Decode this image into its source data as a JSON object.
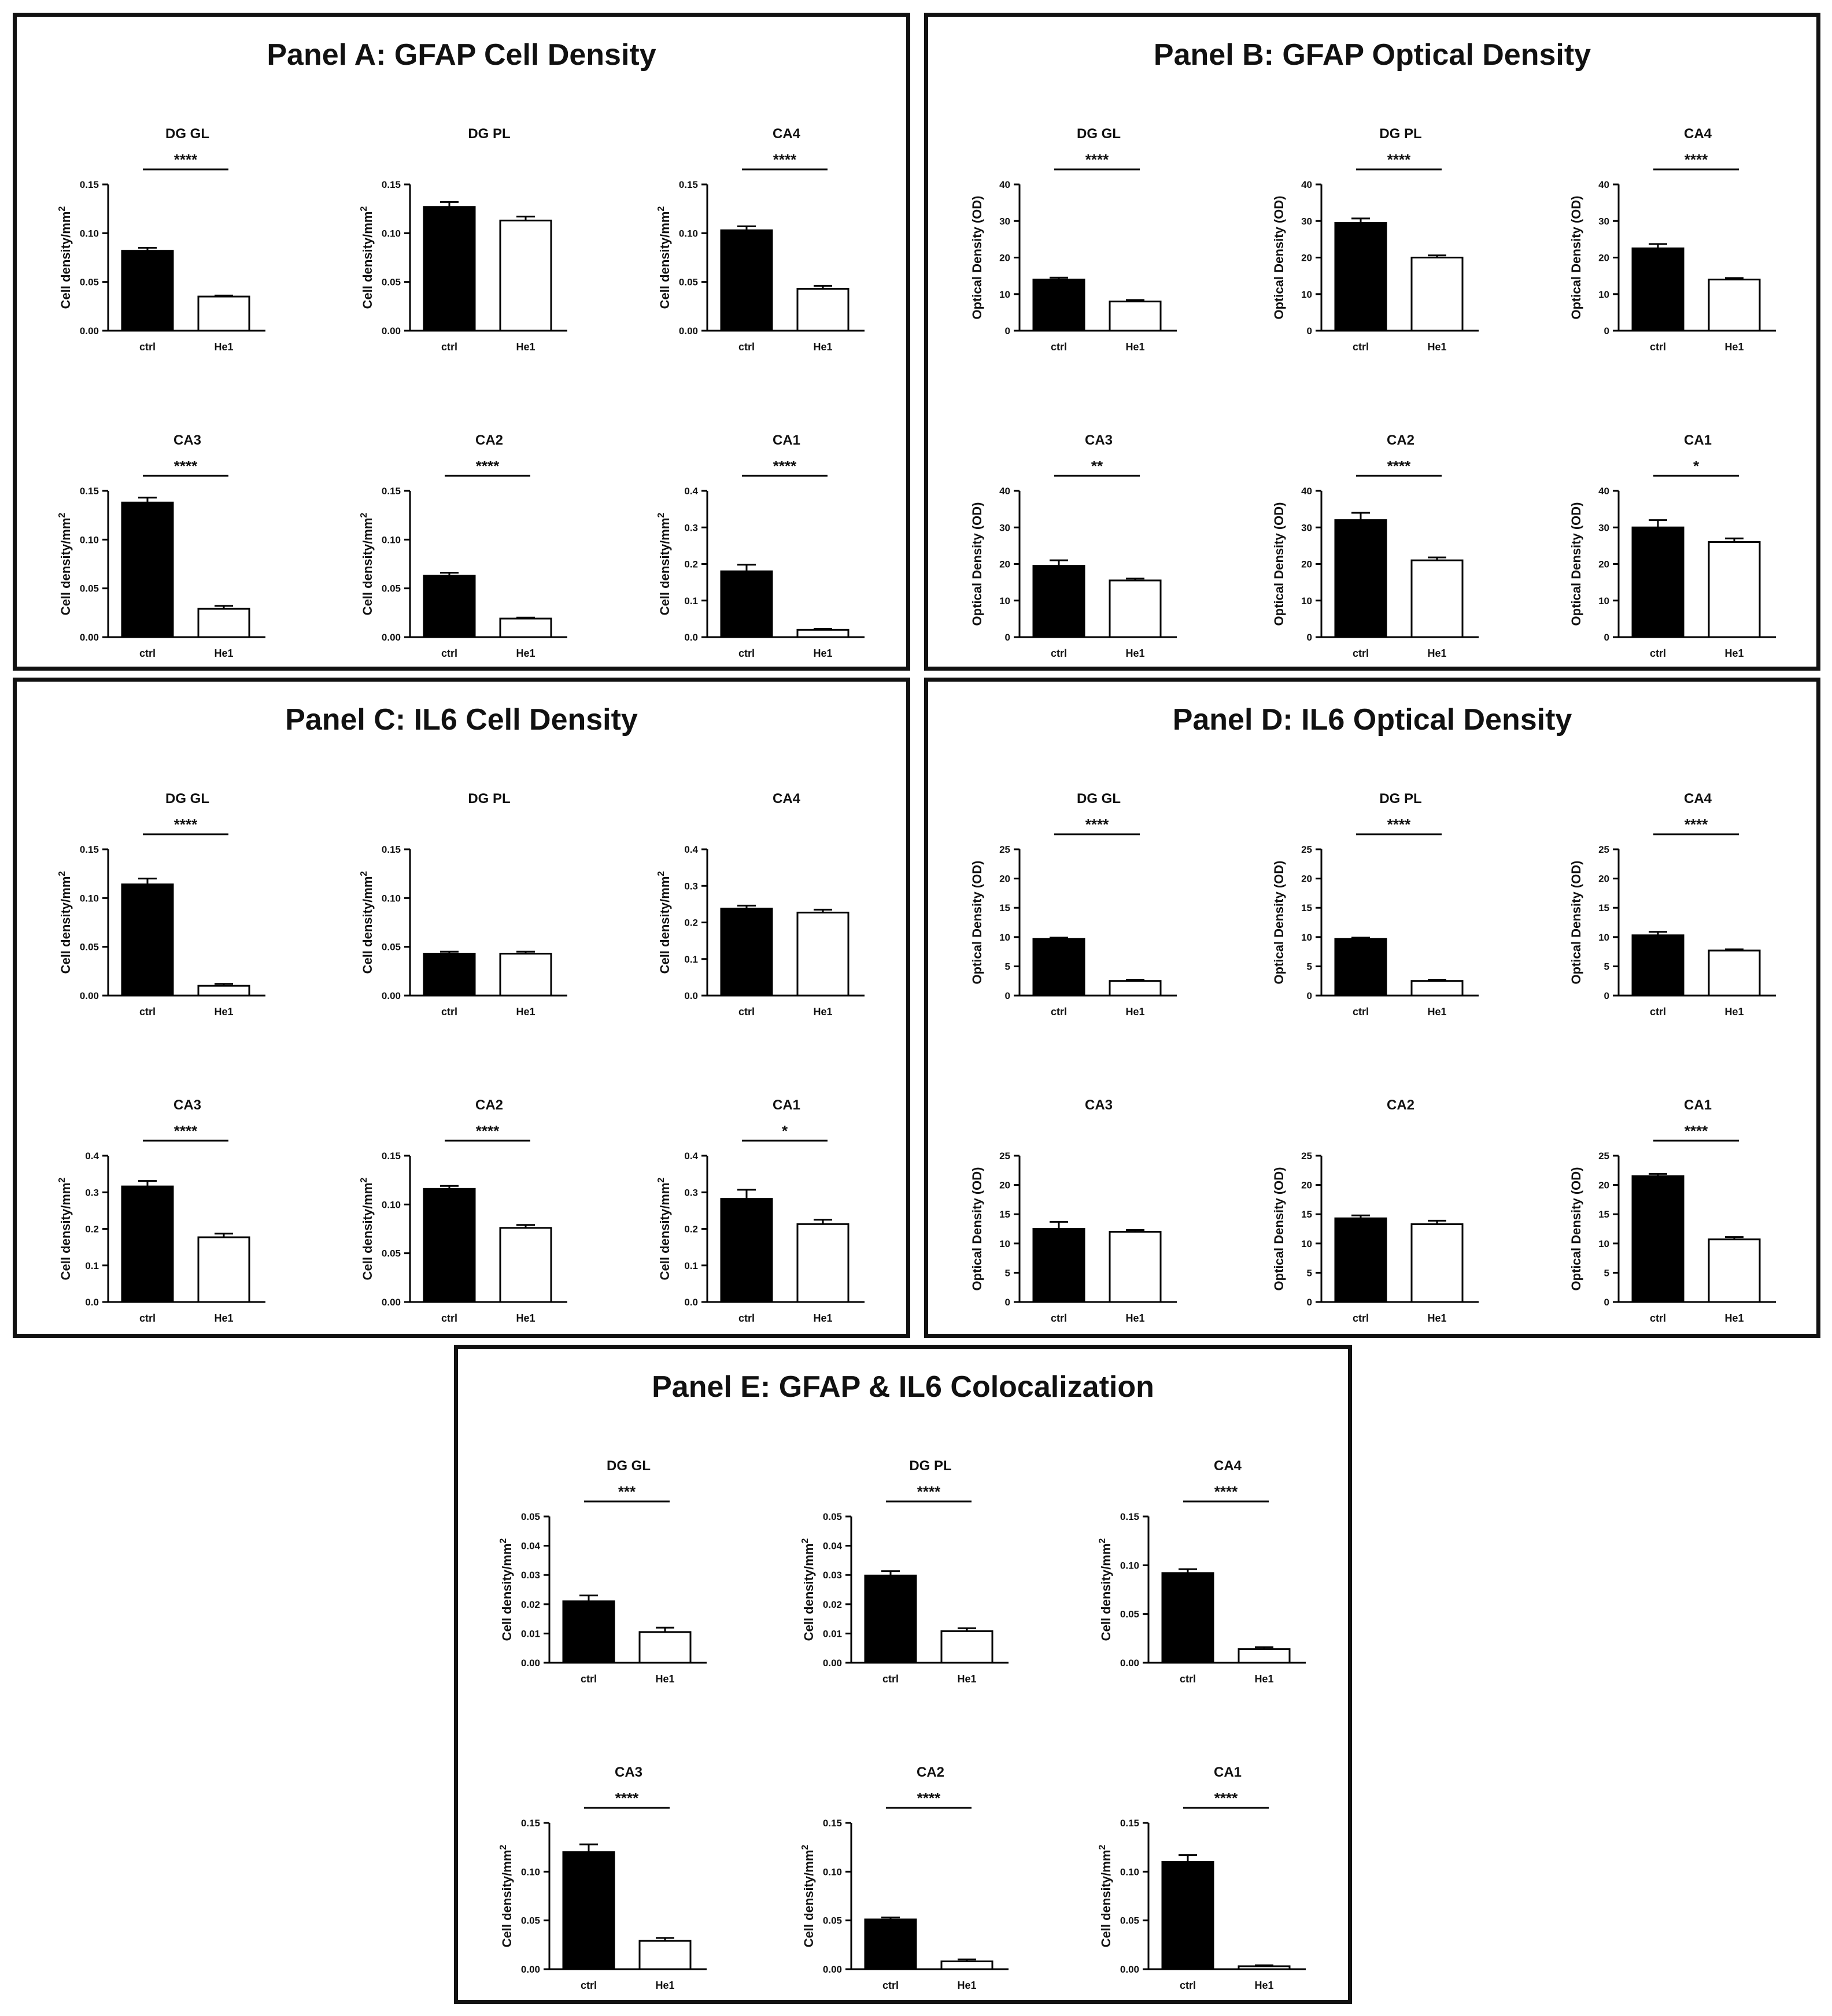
{
  "colors": {
    "ctrl": "#000000",
    "he1": "#ffffff",
    "stroke": "#000000"
  },
  "chart_data": [
    {
      "id": "A",
      "title": "Panel A: GFAP Cell Density",
      "charts": [
        {
          "type": "bar",
          "title": "DG GL",
          "ylabel": "Cell density/mm2",
          "ylabel_main": "Cell density/mm",
          "ylabel_sup": "2",
          "categories": [
            "ctrl",
            "He1"
          ],
          "values": [
            0.082,
            0.035
          ],
          "errors": [
            0.003,
            0.001
          ],
          "ylim": [
            0,
            0.15
          ],
          "yticks": [
            "0.00",
            "0.05",
            "0.10",
            "0.15"
          ],
          "significance": "****"
        },
        {
          "type": "bar",
          "title": "DG PL",
          "ylabel": "Cell density/mm2",
          "ylabel_main": "Cell density/mm",
          "ylabel_sup": "2",
          "categories": [
            "ctrl",
            "He1"
          ],
          "values": [
            0.127,
            0.113
          ],
          "errors": [
            0.005,
            0.004
          ],
          "ylim": [
            0,
            0.15
          ],
          "yticks": [
            "0.00",
            "0.05",
            "0.10",
            "0.15"
          ],
          "significance": ""
        },
        {
          "type": "bar",
          "title": "CA4",
          "ylabel": "Cell density/mm2",
          "ylabel_main": "Cell density/mm",
          "ylabel_sup": "2",
          "categories": [
            "ctrl",
            "He1"
          ],
          "values": [
            0.103,
            0.043
          ],
          "errors": [
            0.004,
            0.003
          ],
          "ylim": [
            0,
            0.15
          ],
          "yticks": [
            "0.00",
            "0.05",
            "0.10",
            "0.15"
          ],
          "significance": "****"
        },
        {
          "type": "bar",
          "title": "CA3",
          "ylabel": "Cell density/mm2",
          "ylabel_main": "Cell density/mm",
          "ylabel_sup": "2",
          "categories": [
            "ctrl",
            "He1"
          ],
          "values": [
            0.138,
            0.029
          ],
          "errors": [
            0.005,
            0.003
          ],
          "ylim": [
            0,
            0.15
          ],
          "yticks": [
            "0.00",
            "0.05",
            "0.10",
            "0.15"
          ],
          "significance": "****"
        },
        {
          "type": "bar",
          "title": "CA2",
          "ylabel": "Cell density/mm2",
          "ylabel_main": "Cell density/mm",
          "ylabel_sup": "2",
          "categories": [
            "ctrl",
            "He1"
          ],
          "values": [
            0.063,
            0.019
          ],
          "errors": [
            0.003,
            0.001
          ],
          "ylim": [
            0,
            0.15
          ],
          "yticks": [
            "0.00",
            "0.05",
            "0.10",
            "0.15"
          ],
          "significance": "****"
        },
        {
          "type": "bar",
          "title": "CA1",
          "ylabel": "Cell density/mm2",
          "ylabel_main": "Cell density/mm",
          "ylabel_sup": "2",
          "categories": [
            "ctrl",
            "He1"
          ],
          "values": [
            0.18,
            0.02
          ],
          "errors": [
            0.018,
            0.003
          ],
          "ylim": [
            0,
            0.4
          ],
          "yticks": [
            "0.0",
            "0.1",
            "0.2",
            "0.3",
            "0.4"
          ],
          "significance": "****"
        }
      ]
    },
    {
      "id": "B",
      "title": "Panel B: GFAP Optical Density",
      "charts": [
        {
          "type": "bar",
          "title": "DG GL",
          "ylabel": "Optical Density (OD)",
          "ylabel_main": "Optical Density (OD)",
          "ylabel_sup": "",
          "categories": [
            "ctrl",
            "He1"
          ],
          "values": [
            14,
            8
          ],
          "errors": [
            0.5,
            0.4
          ],
          "ylim": [
            0,
            40
          ],
          "yticks": [
            "0",
            "10",
            "20",
            "30",
            "40"
          ],
          "significance": "****"
        },
        {
          "type": "bar",
          "title": "DG PL",
          "ylabel": "Optical Density (OD)",
          "ylabel_main": "Optical Density (OD)",
          "ylabel_sup": "",
          "categories": [
            "ctrl",
            "He1"
          ],
          "values": [
            29.5,
            20
          ],
          "errors": [
            1.2,
            0.6
          ],
          "ylim": [
            0,
            40
          ],
          "yticks": [
            "0",
            "10",
            "20",
            "30",
            "40"
          ],
          "significance": "****"
        },
        {
          "type": "bar",
          "title": "CA4",
          "ylabel": "Optical Density (OD)",
          "ylabel_main": "Optical Density (OD)",
          "ylabel_sup": "",
          "categories": [
            "ctrl",
            "He1"
          ],
          "values": [
            22.5,
            14
          ],
          "errors": [
            1.2,
            0.4
          ],
          "ylim": [
            0,
            40
          ],
          "yticks": [
            "0",
            "10",
            "20",
            "30",
            "40"
          ],
          "significance": "****"
        },
        {
          "type": "bar",
          "title": "CA3",
          "ylabel": "Optical Density (OD)",
          "ylabel_main": "Optical Density (OD)",
          "ylabel_sup": "",
          "categories": [
            "ctrl",
            "He1"
          ],
          "values": [
            19.5,
            15.5
          ],
          "errors": [
            1.5,
            0.5
          ],
          "ylim": [
            0,
            40
          ],
          "yticks": [
            "0",
            "10",
            "20",
            "30",
            "40"
          ],
          "significance": "**"
        },
        {
          "type": "bar",
          "title": "CA2",
          "ylabel": "Optical Density (OD)",
          "ylabel_main": "Optical Density (OD)",
          "ylabel_sup": "",
          "categories": [
            "ctrl",
            "He1"
          ],
          "values": [
            32,
            21
          ],
          "errors": [
            2,
            0.8
          ],
          "ylim": [
            0,
            40
          ],
          "yticks": [
            "0",
            "10",
            "20",
            "30",
            "40"
          ],
          "significance": "****"
        },
        {
          "type": "bar",
          "title": "CA1",
          "ylabel": "Optical Density (OD)",
          "ylabel_main": "Optical Density (OD)",
          "ylabel_sup": "",
          "categories": [
            "ctrl",
            "He1"
          ],
          "values": [
            30,
            26
          ],
          "errors": [
            2,
            1
          ],
          "ylim": [
            0,
            40
          ],
          "yticks": [
            "0",
            "10",
            "20",
            "30",
            "40"
          ],
          "significance": "*"
        }
      ]
    },
    {
      "id": "C",
      "title": "Panel C: IL6 Cell Density",
      "charts": [
        {
          "type": "bar",
          "title": "DG GL",
          "ylabel": "Cell density/mm2",
          "ylabel_main": "Cell density/mm",
          "ylabel_sup": "2",
          "categories": [
            "ctrl",
            "He1"
          ],
          "values": [
            0.114,
            0.01
          ],
          "errors": [
            0.006,
            0.002
          ],
          "ylim": [
            0,
            0.15
          ],
          "yticks": [
            "0.00",
            "0.05",
            "0.10",
            "0.15"
          ],
          "significance": "****"
        },
        {
          "type": "bar",
          "title": "DG PL",
          "ylabel": "Cell density/mm2",
          "ylabel_main": "Cell density/mm",
          "ylabel_sup": "2",
          "categories": [
            "ctrl",
            "He1"
          ],
          "values": [
            0.043,
            0.043
          ],
          "errors": [
            0.002,
            0.002
          ],
          "ylim": [
            0,
            0.15
          ],
          "yticks": [
            "0.00",
            "0.05",
            "0.10",
            "0.15"
          ],
          "significance": ""
        },
        {
          "type": "bar",
          "title": "CA4",
          "ylabel": "Cell density/mm2",
          "ylabel_main": "Cell density/mm",
          "ylabel_sup": "2",
          "categories": [
            "ctrl",
            "He1"
          ],
          "values": [
            0.238,
            0.227
          ],
          "errors": [
            0.008,
            0.008
          ],
          "ylim": [
            0,
            0.4
          ],
          "yticks": [
            "0.0",
            "0.1",
            "0.2",
            "0.3",
            "0.4"
          ],
          "significance": ""
        },
        {
          "type": "bar",
          "title": "CA3",
          "ylabel": "Cell density/mm2",
          "ylabel_main": "Cell density/mm",
          "ylabel_sup": "2",
          "categories": [
            "ctrl",
            "He1"
          ],
          "values": [
            0.316,
            0.177
          ],
          "errors": [
            0.015,
            0.01
          ],
          "ylim": [
            0,
            0.4
          ],
          "yticks": [
            "0.0",
            "0.1",
            "0.2",
            "0.3",
            "0.4"
          ],
          "significance": "****"
        },
        {
          "type": "bar",
          "title": "CA2",
          "ylabel": "Cell density/mm2",
          "ylabel_main": "Cell density/mm",
          "ylabel_sup": "2",
          "categories": [
            "ctrl",
            "He1"
          ],
          "values": [
            0.116,
            0.076
          ],
          "errors": [
            0.003,
            0.003
          ],
          "ylim": [
            0,
            0.15
          ],
          "yticks": [
            "0.00",
            "0.05",
            "0.10",
            "0.15"
          ],
          "significance": "****"
        },
        {
          "type": "bar",
          "title": "CA1",
          "ylabel": "Cell density/mm2",
          "ylabel_main": "Cell density/mm",
          "ylabel_sup": "2",
          "categories": [
            "ctrl",
            "He1"
          ],
          "values": [
            0.282,
            0.213
          ],
          "errors": [
            0.025,
            0.012
          ],
          "ylim": [
            0,
            0.4
          ],
          "yticks": [
            "0.0",
            "0.1",
            "0.2",
            "0.3",
            "0.4"
          ],
          "significance": "*"
        }
      ]
    },
    {
      "id": "D",
      "title": "Panel D: IL6 Optical Density",
      "charts": [
        {
          "type": "bar",
          "title": "DG GL",
          "ylabel": "Optical Density (OD)",
          "ylabel_main": "Optical Density (OD)",
          "ylabel_sup": "",
          "categories": [
            "ctrl",
            "He1"
          ],
          "values": [
            9.7,
            2.5
          ],
          "errors": [
            0.2,
            0.2
          ],
          "ylim": [
            0,
            25
          ],
          "yticks": [
            "0",
            "5",
            "10",
            "15",
            "20",
            "25"
          ],
          "significance": "****"
        },
        {
          "type": "bar",
          "title": "DG PL",
          "ylabel": "Optical Density (OD)",
          "ylabel_main": "Optical Density (OD)",
          "ylabel_sup": "",
          "categories": [
            "ctrl",
            "He1"
          ],
          "values": [
            9.7,
            2.5
          ],
          "errors": [
            0.2,
            0.2
          ],
          "ylim": [
            0,
            25
          ],
          "yticks": [
            "0",
            "5",
            "10",
            "15",
            "20",
            "25"
          ],
          "significance": "****"
        },
        {
          "type": "bar",
          "title": "CA4",
          "ylabel": "Optical Density (OD)",
          "ylabel_main": "Optical Density (OD)",
          "ylabel_sup": "",
          "categories": [
            "ctrl",
            "He1"
          ],
          "values": [
            10.3,
            7.7
          ],
          "errors": [
            0.6,
            0.2
          ],
          "ylim": [
            0,
            25
          ],
          "yticks": [
            "0",
            "5",
            "10",
            "15",
            "20",
            "25"
          ],
          "significance": "****"
        },
        {
          "type": "bar",
          "title": "CA3",
          "ylabel": "Optical Density (OD)",
          "ylabel_main": "Optical Density (OD)",
          "ylabel_sup": "",
          "categories": [
            "ctrl",
            "He1"
          ],
          "values": [
            12.5,
            12
          ],
          "errors": [
            1.2,
            0.3
          ],
          "ylim": [
            0,
            25
          ],
          "yticks": [
            "0",
            "5",
            "10",
            "15",
            "20",
            "25"
          ],
          "significance": ""
        },
        {
          "type": "bar",
          "title": "CA2",
          "ylabel": "Optical Density (OD)",
          "ylabel_main": "Optical Density (OD)",
          "ylabel_sup": "",
          "categories": [
            "ctrl",
            "He1"
          ],
          "values": [
            14.3,
            13.3
          ],
          "errors": [
            0.5,
            0.6
          ],
          "ylim": [
            0,
            25
          ],
          "yticks": [
            "0",
            "5",
            "10",
            "15",
            "20",
            "25"
          ],
          "significance": ""
        },
        {
          "type": "bar",
          "title": "CA1",
          "ylabel": "Optical Density (OD)",
          "ylabel_main": "Optical Density (OD)",
          "ylabel_sup": "",
          "categories": [
            "ctrl",
            "He1"
          ],
          "values": [
            21.5,
            10.7
          ],
          "errors": [
            0.4,
            0.4
          ],
          "ylim": [
            0,
            25
          ],
          "yticks": [
            "0",
            "5",
            "10",
            "15",
            "20",
            "25"
          ],
          "significance": "****"
        }
      ]
    },
    {
      "id": "E",
      "title": "Panel E: GFAP & IL6 Colocalization",
      "charts": [
        {
          "type": "bar",
          "title": "DG GL",
          "ylabel": "Cell density/mm2",
          "ylabel_main": "Cell density/mm",
          "ylabel_sup": "2",
          "categories": [
            "ctrl",
            "He1"
          ],
          "values": [
            0.021,
            0.0105
          ],
          "errors": [
            0.002,
            0.0015
          ],
          "ylim": [
            0,
            0.05
          ],
          "yticks": [
            "0.00",
            "0.01",
            "0.02",
            "0.03",
            "0.04",
            "0.05"
          ],
          "significance": "***"
        },
        {
          "type": "bar",
          "title": "DG PL",
          "ylabel": "Cell density/mm2",
          "ylabel_main": "Cell density/mm",
          "ylabel_sup": "2",
          "categories": [
            "ctrl",
            "He1"
          ],
          "values": [
            0.0298,
            0.0108
          ],
          "errors": [
            0.0015,
            0.001
          ],
          "ylim": [
            0,
            0.05
          ],
          "yticks": [
            "0.00",
            "0.01",
            "0.02",
            "0.03",
            "0.04",
            "0.05"
          ],
          "significance": "****"
        },
        {
          "type": "bar",
          "title": "CA4",
          "ylabel": "Cell density/mm2",
          "ylabel_main": "Cell density/mm",
          "ylabel_sup": "2",
          "categories": [
            "ctrl",
            "He1"
          ],
          "values": [
            0.092,
            0.014
          ],
          "errors": [
            0.004,
            0.002
          ],
          "ylim": [
            0,
            0.15
          ],
          "yticks": [
            "0.00",
            "0.05",
            "0.10",
            "0.15"
          ],
          "significance": "****"
        },
        {
          "type": "bar",
          "title": "CA3",
          "ylabel": "Cell density/mm2",
          "ylabel_main": "Cell density/mm",
          "ylabel_sup": "2",
          "categories": [
            "ctrl",
            "He1"
          ],
          "values": [
            0.12,
            0.029
          ],
          "errors": [
            0.008,
            0.003
          ],
          "ylim": [
            0,
            0.15
          ],
          "yticks": [
            "0.00",
            "0.05",
            "0.10",
            "0.15"
          ],
          "significance": "****"
        },
        {
          "type": "bar",
          "title": "CA2",
          "ylabel": "Cell density/mm2",
          "ylabel_main": "Cell density/mm",
          "ylabel_sup": "2",
          "categories": [
            "ctrl",
            "He1"
          ],
          "values": [
            0.051,
            0.008
          ],
          "errors": [
            0.002,
            0.002
          ],
          "ylim": [
            0,
            0.15
          ],
          "yticks": [
            "0.00",
            "0.05",
            "0.10",
            "0.15"
          ],
          "significance": "****"
        },
        {
          "type": "bar",
          "title": "CA1",
          "ylabel": "Cell density/mm2",
          "ylabel_main": "Cell density/mm",
          "ylabel_sup": "2",
          "categories": [
            "ctrl",
            "He1"
          ],
          "values": [
            0.11,
            0.003
          ],
          "errors": [
            0.007,
            0.001
          ],
          "ylim": [
            0,
            0.15
          ],
          "yticks": [
            "0.00",
            "0.05",
            "0.10",
            "0.15"
          ],
          "significance": "****"
        }
      ]
    }
  ]
}
